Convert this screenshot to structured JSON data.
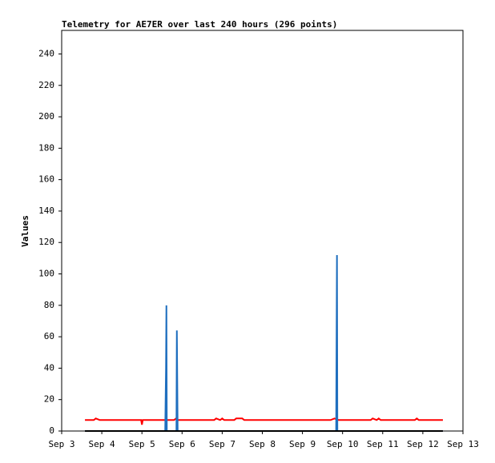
{
  "chart_data": {
    "type": "line",
    "title": "Telemetry for AE7ER over last 240 hours (296 points)",
    "y_label": "Values",
    "xlim": [
      3,
      13
    ],
    "xticks": [
      {
        "value": 3,
        "label": "Sep 3"
      },
      {
        "value": 4,
        "label": "Sep 4"
      },
      {
        "value": 5,
        "label": "Sep 5"
      },
      {
        "value": 6,
        "label": "Sep 6"
      },
      {
        "value": 7,
        "label": "Sep 7"
      },
      {
        "value": 8,
        "label": "Sep 8"
      },
      {
        "value": 9,
        "label": "Sep 9"
      },
      {
        "value": 10,
        "label": "Sep 10"
      },
      {
        "value": 11,
        "label": "Sep 11"
      },
      {
        "value": 12,
        "label": "Sep 12"
      },
      {
        "value": 13,
        "label": "Sep 13"
      }
    ],
    "ylim": [
      0,
      255
    ],
    "yticks": [
      0,
      20,
      40,
      60,
      80,
      100,
      120,
      140,
      160,
      180,
      200,
      220,
      240
    ],
    "series": [
      {
        "color": "#ff0000",
        "x": [
          3.58,
          3.8,
          3.85,
          3.95,
          4.98,
          5.0,
          5.02,
          5.8,
          5.85,
          5.9,
          6.8,
          6.85,
          6.95,
          7.0,
          7.05,
          7.3,
          7.35,
          7.5,
          7.55,
          9.7,
          9.8,
          9.9,
          10.7,
          10.75,
          10.85,
          10.9,
          10.95,
          11.8,
          11.85,
          11.9,
          12.5
        ],
        "values": [
          7,
          7,
          8,
          7,
          7,
          4,
          7,
          7,
          8,
          7,
          7,
          8,
          7,
          8,
          7,
          7,
          8,
          8,
          7,
          7,
          8,
          7,
          7,
          8,
          7,
          8,
          7,
          7,
          8,
          7,
          7
        ]
      },
      {
        "color": "#1f6fbf",
        "x": [
          3.58,
          5.58,
          5.6,
          5.61,
          5.62,
          5.86,
          5.87,
          5.88,
          5.89,
          9.84,
          9.85,
          9.86,
          9.87,
          12.5
        ],
        "values": [
          0,
          0,
          40,
          80,
          0,
          0,
          64,
          32,
          0,
          0,
          56,
          112,
          0,
          0
        ]
      },
      {
        "color": "#000000",
        "x": [
          3.58,
          12.5
        ],
        "values": [
          0,
          0
        ]
      }
    ]
  }
}
